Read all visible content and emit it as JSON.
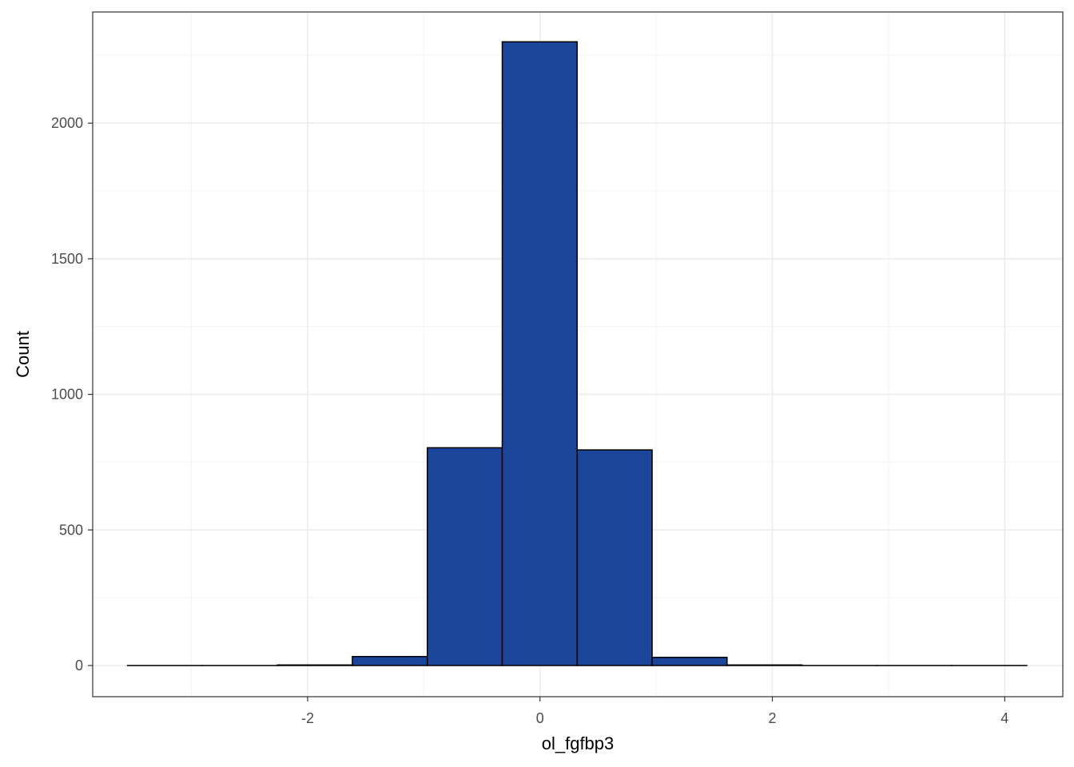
{
  "chart_data": {
    "type": "bar",
    "subtype": "histogram",
    "title": "",
    "xlabel": "ol_fgfbp3",
    "ylabel": "Count",
    "xlim": [
      -3.85,
      4.5
    ],
    "ylim": [
      -115,
      2410
    ],
    "x_ticks": [
      -2,
      0,
      2,
      4
    ],
    "x_tick_labels": [
      "-2",
      "0",
      "2",
      "4"
    ],
    "y_ticks": [
      0,
      500,
      1000,
      1500,
      2000
    ],
    "y_tick_labels": [
      "0",
      "500",
      "1000",
      "1500",
      "2000"
    ],
    "grid": true,
    "legend": "none",
    "bin_edges": [
      -3.55,
      -2.905,
      -2.26,
      -1.615,
      -0.97,
      -0.325,
      0.32,
      0.965,
      1.61,
      2.255,
      2.9,
      3.545,
      4.19
    ],
    "values": [
      0,
      0,
      2,
      33,
      803,
      2300,
      795,
      30,
      2,
      0,
      0,
      0
    ],
    "colors": {
      "bar_fill": "#1a4599",
      "bar_stroke": "#000000",
      "panel_border": "#333333",
      "grid_major": "#ebebeb",
      "grid_minor": "#f4f4f4"
    }
  }
}
